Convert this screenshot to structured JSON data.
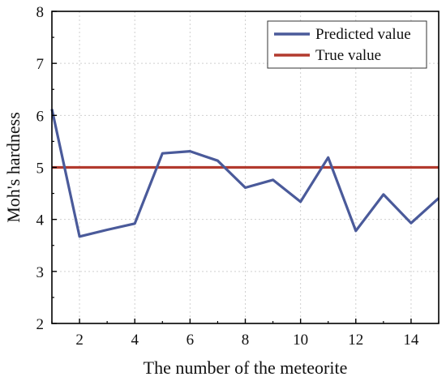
{
  "chart_data": {
    "type": "line",
    "xlabel": "The number of the meteorite",
    "ylabel": "Moh's hardness",
    "xlim": [
      1,
      15
    ],
    "ylim": [
      2,
      8
    ],
    "x_ticks": [
      2,
      4,
      6,
      8,
      10,
      12,
      14
    ],
    "y_ticks": [
      2,
      3,
      4,
      5,
      6,
      7,
      8
    ],
    "grid": true,
    "legend_position": "top-right",
    "series": [
      {
        "name": "Predicted value",
        "color": "#4a5a9a",
        "x": [
          1,
          2,
          3,
          4,
          5,
          6,
          7,
          8,
          9,
          10,
          11,
          12,
          13,
          14,
          15
        ],
        "y": [
          6.12,
          3.67,
          3.8,
          3.92,
          5.27,
          5.31,
          5.13,
          4.61,
          4.76,
          4.34,
          5.19,
          3.78,
          4.48,
          3.93,
          4.41
        ]
      },
      {
        "name": "True value",
        "color": "#b23a2e",
        "x": [
          1,
          15
        ],
        "y": [
          5,
          5
        ]
      }
    ]
  }
}
